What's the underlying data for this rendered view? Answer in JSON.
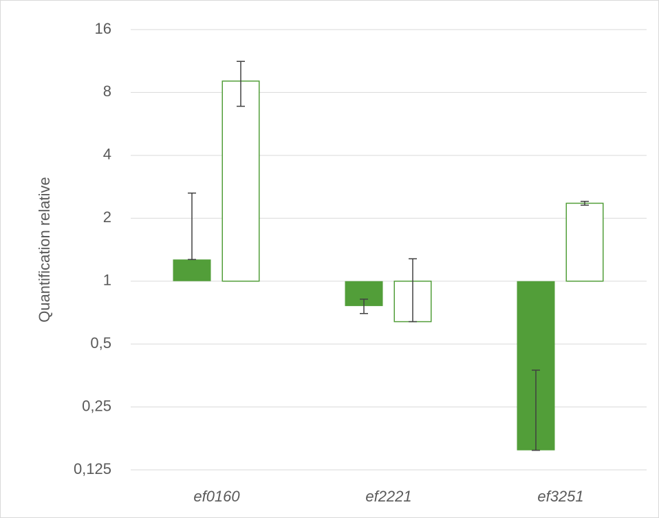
{
  "chart_data": {
    "type": "bar",
    "y_label": "Quantification relative",
    "categories": [
      "ef0160",
      "ef2221",
      "ef3251"
    ],
    "series": [
      {
        "color": "#529e39",
        "fill": "solid",
        "values": [
          1.27,
          0.76,
          0.155
        ],
        "errors": [
          1.37,
          0.06,
          0.22
        ]
      },
      {
        "color": "#529e39",
        "fill": "none",
        "values": [
          9.07,
          0.64,
          2.36
        ],
        "errors": [
          2.2,
          0.64,
          0.05
        ]
      }
    ],
    "log_base": 2,
    "ylim": [
      0.125,
      16
    ],
    "yticks": [
      {
        "value": 0.125,
        "label": "0,125"
      },
      {
        "value": 0.25,
        "label": "0,25"
      },
      {
        "value": 0.5,
        "label": "0,5"
      },
      1,
      2,
      4,
      8,
      16
    ],
    "grid": true
  }
}
